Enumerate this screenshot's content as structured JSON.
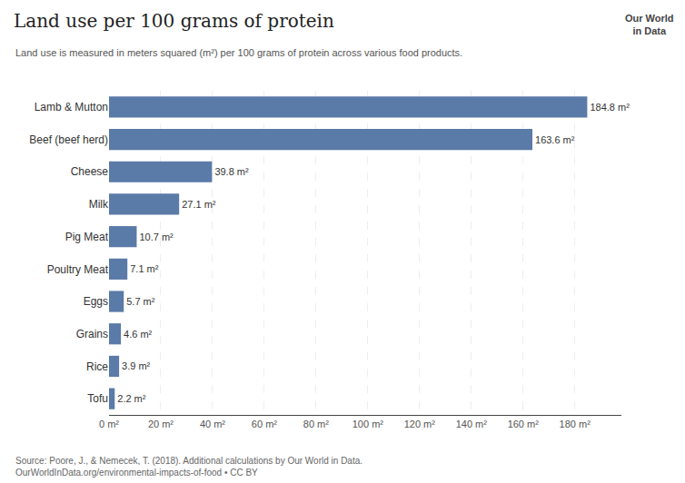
{
  "chart_data": {
    "type": "bar",
    "orientation": "horizontal",
    "title": "Land use per 100 grams of protein",
    "subtitle": "Land use is measured in meters squared (m²) per 100 grams of protein across various food products.",
    "annotations": [
      "Source: Poore, J., & Nemecek, T. (2018). Additional calculations by Our World in Data.\nOurWorldInData.org/environmental-impacts-of-food • CC BY",
      "Our World\nin Data"
    ],
    "categories": [
      "Lamb & Mutton",
      "Beef (beef herd)",
      "Cheese",
      "Milk",
      "Pig Meat",
      "Poultry Meat",
      "Eggs",
      "Grains",
      "Rice",
      "Tofu"
    ],
    "values": [
      184.8,
      163.6,
      39.8,
      27.1,
      10.7,
      7.1,
      5.7,
      4.6,
      3.9,
      2.2
    ],
    "value_labels": [
      "184.8 m²",
      "163.6 m²",
      "39.8 m²",
      "27.1 m²",
      "10.7 m²",
      "7.1 m²",
      "5.7 m²",
      "4.6 m²",
      "3.9 m²",
      "2.2 m²"
    ],
    "data_labels": true,
    "color": "#5a7aa8",
    "xlim": [
      0,
      198
    ],
    "xticks": [
      {
        "value": 0,
        "label": "0 m²"
      },
      {
        "value": 20,
        "label": "20 m²"
      },
      {
        "value": 40,
        "label": "40 m²"
      },
      {
        "value": 60,
        "label": "60 m²"
      },
      {
        "value": 80,
        "label": "80 m²"
      },
      {
        "value": 100,
        "label": "100 m²"
      },
      {
        "value": 120,
        "label": "120 m²"
      },
      {
        "value": 140,
        "label": "140 m²"
      },
      {
        "value": 160,
        "label": "160 m²"
      },
      {
        "value": 180,
        "label": "180 m²"
      }
    ],
    "grid": true
  }
}
